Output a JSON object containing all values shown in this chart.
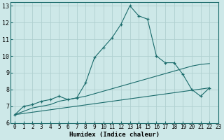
{
  "xlabel": "Humidex (Indice chaleur)",
  "bg_color": "#cde8e8",
  "line_color": "#1a6b6b",
  "grid_color": "#b0d0d0",
  "xlim": [
    -0.5,
    23
  ],
  "ylim": [
    6,
    13.2
  ],
  "xticks": [
    0,
    1,
    2,
    3,
    4,
    5,
    6,
    7,
    8,
    9,
    10,
    11,
    12,
    13,
    14,
    15,
    16,
    17,
    18,
    19,
    20,
    21,
    22,
    23
  ],
  "yticks": [
    6,
    7,
    8,
    9,
    10,
    11,
    12,
    13
  ],
  "series": [
    [
      0,
      6.5
    ],
    [
      1,
      7.0
    ],
    [
      2,
      7.1
    ],
    [
      3,
      7.3
    ],
    [
      4,
      7.4
    ],
    [
      5,
      7.6
    ],
    [
      6,
      7.4
    ],
    [
      7,
      7.5
    ],
    [
      8,
      8.4
    ],
    [
      9,
      9.9
    ],
    [
      10,
      10.5
    ],
    [
      11,
      11.1
    ],
    [
      12,
      11.9
    ],
    [
      13,
      13.0
    ],
    [
      14,
      12.4
    ],
    [
      15,
      12.2
    ],
    [
      16,
      10.0
    ],
    [
      17,
      9.6
    ],
    [
      18,
      9.6
    ],
    [
      19,
      8.9
    ],
    [
      20,
      8.0
    ],
    [
      21,
      7.6
    ],
    [
      22,
      8.1
    ]
  ],
  "line_straight": [
    [
      0,
      6.5
    ],
    [
      22,
      8.1
    ]
  ],
  "line_upper": [
    [
      0,
      6.5
    ],
    [
      1,
      6.7
    ],
    [
      2,
      6.9
    ],
    [
      3,
      7.0
    ],
    [
      4,
      7.1
    ],
    [
      5,
      7.3
    ],
    [
      6,
      7.4
    ],
    [
      7,
      7.5
    ],
    [
      8,
      7.6
    ],
    [
      9,
      7.75
    ],
    [
      10,
      7.9
    ],
    [
      11,
      8.05
    ],
    [
      12,
      8.2
    ],
    [
      13,
      8.35
    ],
    [
      14,
      8.5
    ],
    [
      15,
      8.65
    ],
    [
      16,
      8.8
    ],
    [
      17,
      8.95
    ],
    [
      18,
      9.1
    ],
    [
      19,
      9.25
    ],
    [
      20,
      9.4
    ],
    [
      21,
      9.5
    ],
    [
      22,
      9.55
    ]
  ]
}
